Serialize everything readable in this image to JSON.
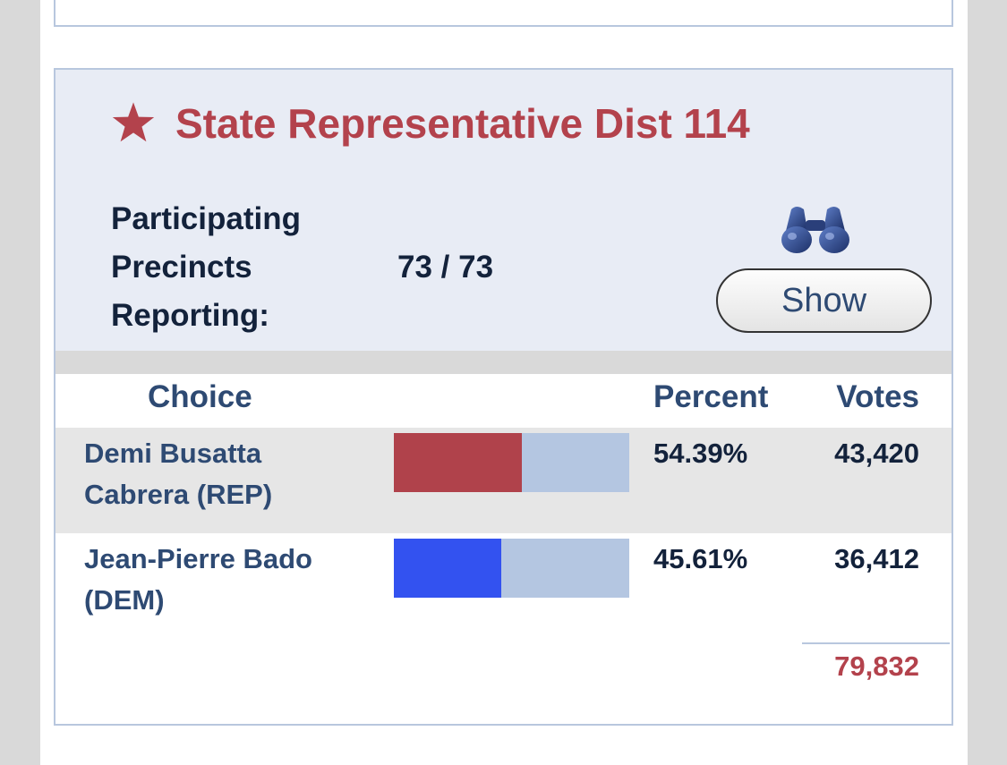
{
  "race": {
    "title": "State Representative Dist 114",
    "precincts_label": "Participating Precincts Reporting:",
    "precincts_value": "73 / 73",
    "show_button_label": "Show",
    "icons": {
      "title": "star-icon",
      "details": "binoculars-icon"
    }
  },
  "table": {
    "headers": {
      "choice": "Choice",
      "percent": "Percent",
      "votes": "Votes"
    },
    "candidates": [
      {
        "name": "Demi Busatta Cabrera (REP)",
        "percent_label": "54.39%",
        "share": 0.5439,
        "votes": "43,420",
        "bar_color": "#b0424b",
        "row_bg": "#e6e6e6"
      },
      {
        "name": "Jean-Pierre Bado (DEM)",
        "percent_label": "45.61%",
        "share": 0.4561,
        "votes": "36,412",
        "bar_color": "#3352f0",
        "row_bg": "#ffffff"
      }
    ],
    "total_votes": "79,832"
  },
  "colors": {
    "accent_red": "#b3424c",
    "header_bg": "#e8ecf5",
    "bar_track": "#b4c6e1",
    "label_blue": "#2e4a73"
  }
}
